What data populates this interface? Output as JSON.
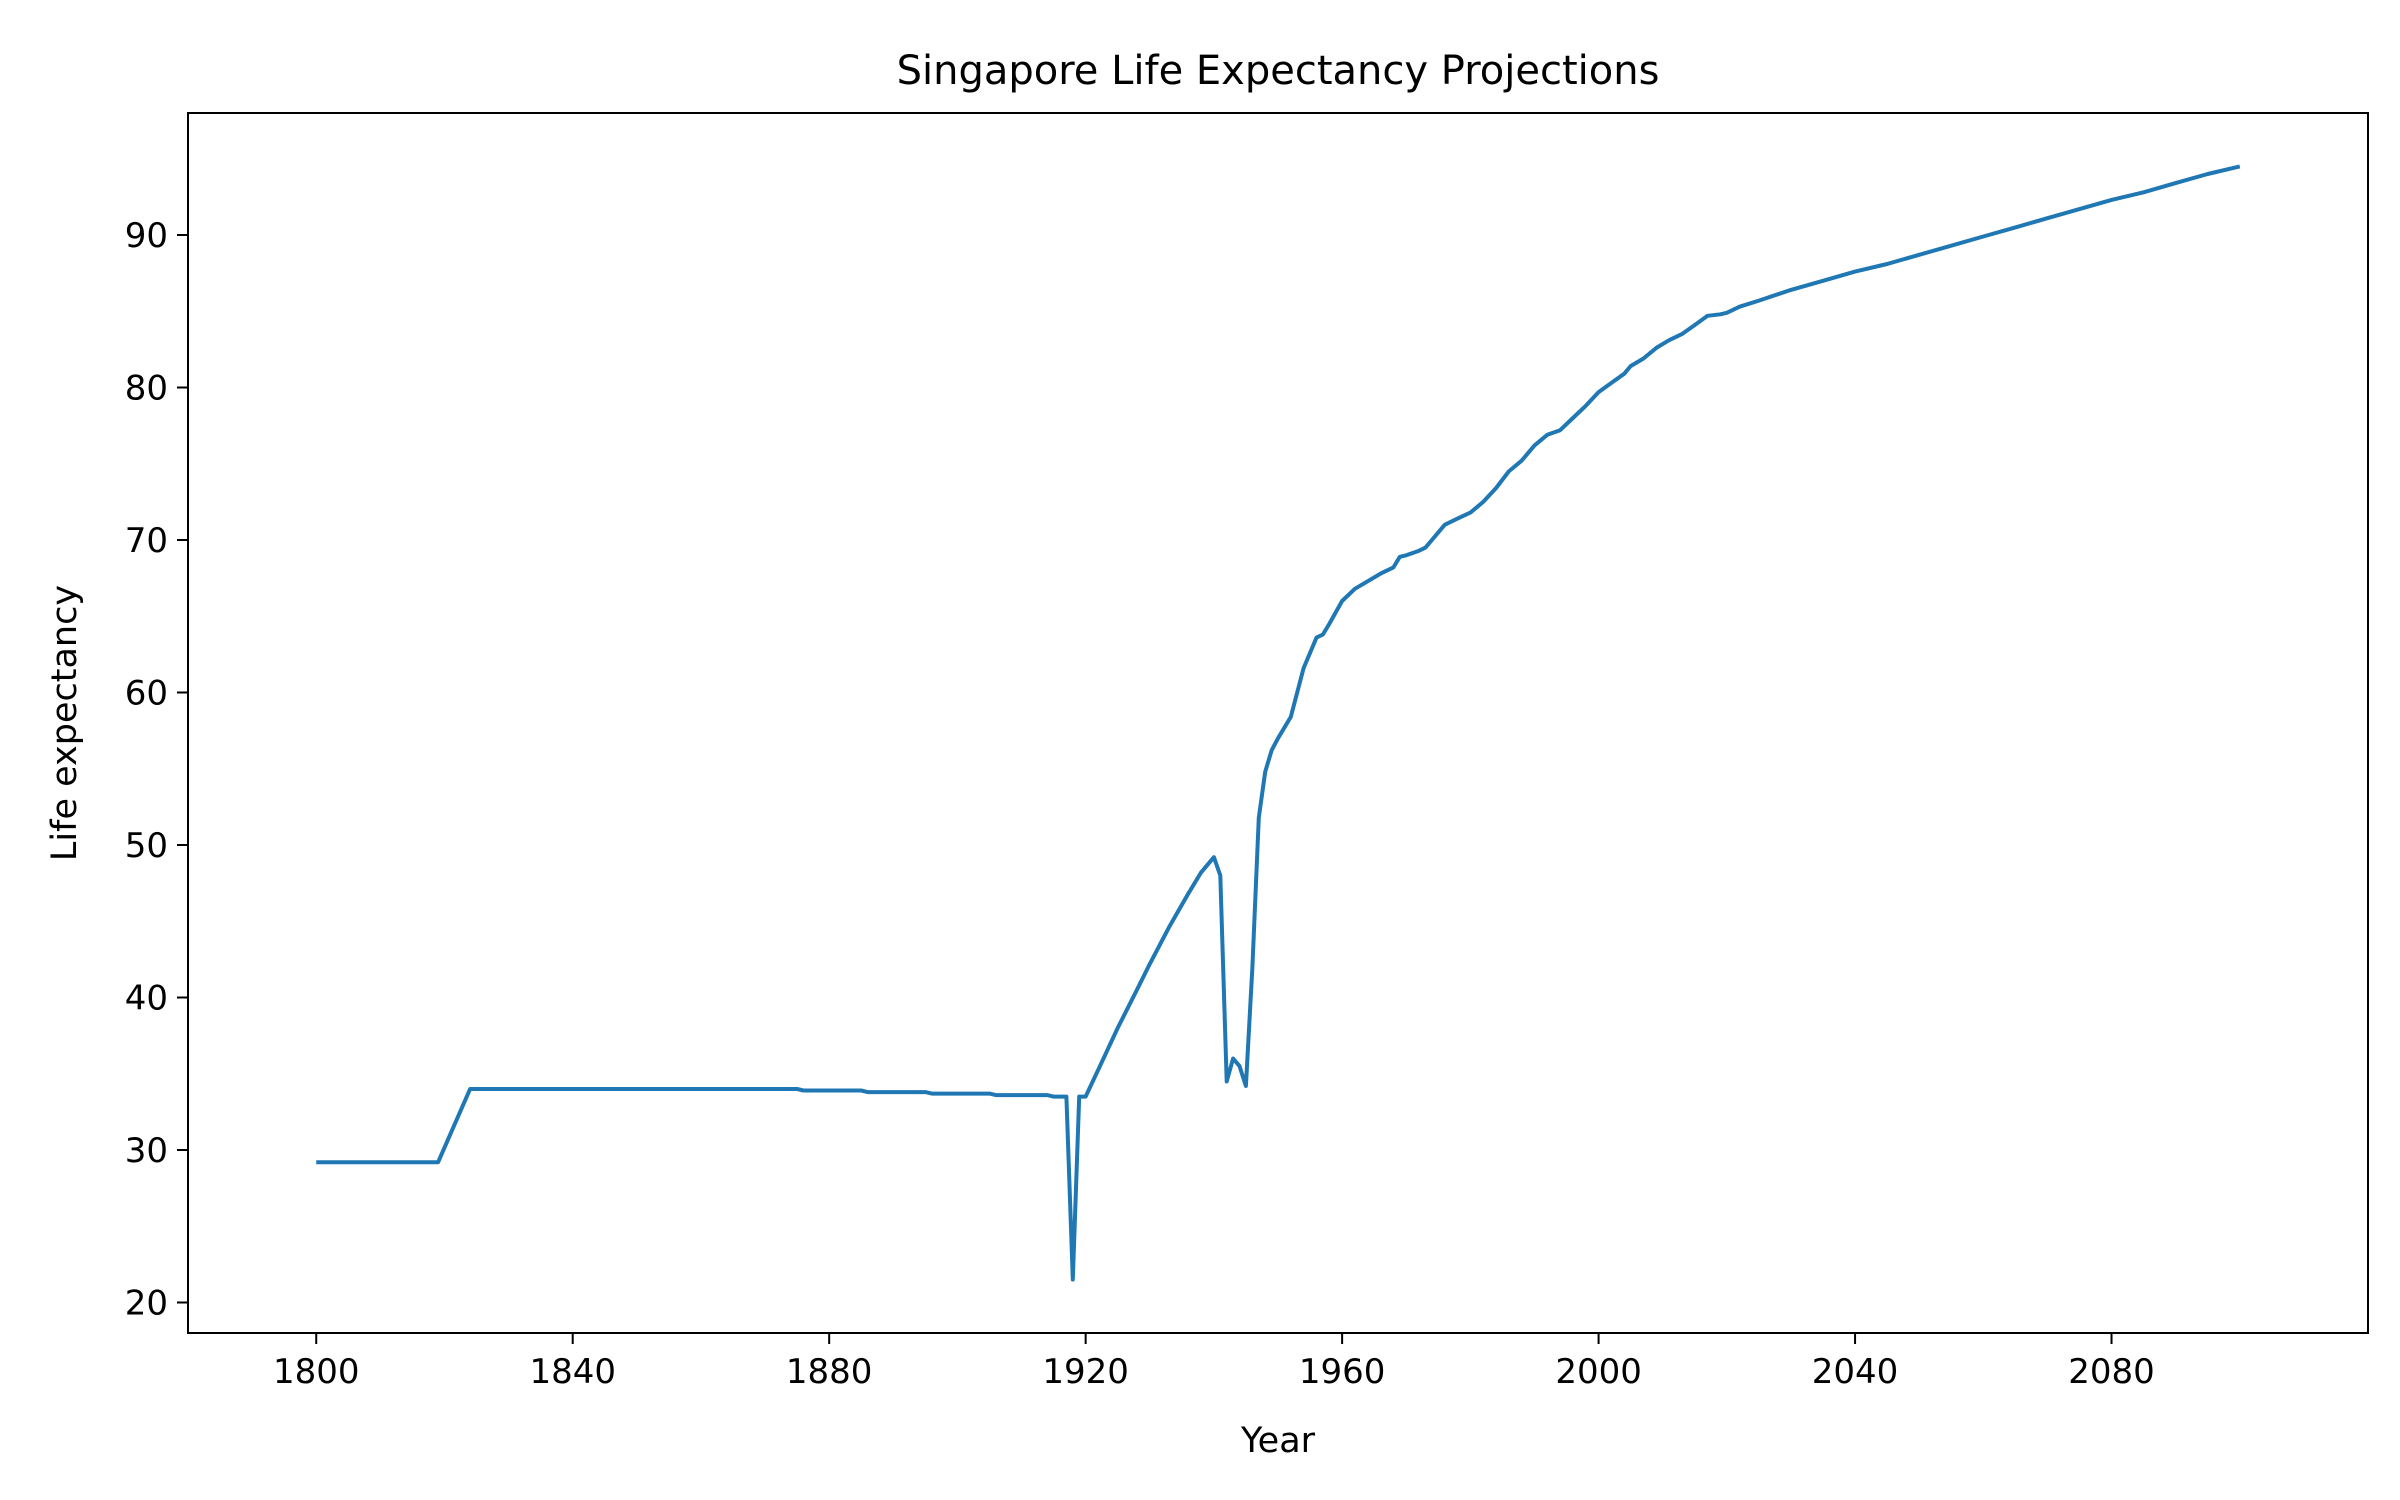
{
  "chart_data": {
    "type": "line",
    "title": "Singapore Life Expectancy Projections",
    "xlabel": "Year",
    "ylabel": "Life expectancy",
    "xlim": [
      1780,
      2120
    ],
    "ylim": [
      18,
      98
    ],
    "xticks": [
      1800,
      1840,
      1880,
      1920,
      1960,
      2000,
      2040,
      2080
    ],
    "yticks": [
      20,
      30,
      40,
      50,
      60,
      70,
      80,
      90
    ],
    "grid": false,
    "legend": "none",
    "series": [
      {
        "color": "#1f77b4",
        "x": [
          1800,
          1810,
          1819,
          1824,
          1830,
          1840,
          1850,
          1860,
          1870,
          1875,
          1876,
          1880,
          1885,
          1886,
          1890,
          1895,
          1896,
          1900,
          1905,
          1906,
          1910,
          1914,
          1915,
          1917,
          1918,
          1919,
          1920,
          1922,
          1925,
          1928,
          1930,
          1933,
          1936,
          1938,
          1940,
          1941,
          1942,
          1943,
          1944,
          1945,
          1946,
          1947,
          1948,
          1949,
          1950,
          1952,
          1954,
          1956,
          1957,
          1958,
          1960,
          1962,
          1964,
          1966,
          1968,
          1969,
          1970,
          1972,
          1973,
          1974,
          1976,
          1978,
          1980,
          1982,
          1984,
          1986,
          1988,
          1990,
          1992,
          1994,
          1996,
          1998,
          2000,
          2002,
          2004,
          2005,
          2007,
          2009,
          2011,
          2013,
          2015,
          2017,
          2019,
          2020,
          2022,
          2025,
          2030,
          2035,
          2040,
          2045,
          2050,
          2055,
          2060,
          2065,
          2070,
          2075,
          2080,
          2085,
          2090,
          2095,
          2100
        ],
        "values": [
          29.2,
          29.2,
          29.2,
          34.0,
          34.0,
          34.0,
          34.0,
          34.0,
          34.0,
          34.0,
          33.9,
          33.9,
          33.9,
          33.8,
          33.8,
          33.8,
          33.7,
          33.7,
          33.7,
          33.6,
          33.6,
          33.6,
          33.5,
          33.5,
          21.5,
          33.5,
          33.5,
          35.3,
          38.0,
          40.5,
          42.2,
          44.6,
          46.8,
          48.2,
          49.2,
          48.0,
          34.5,
          36.0,
          35.5,
          34.2,
          42.0,
          51.8,
          54.8,
          56.2,
          57.0,
          58.4,
          61.6,
          63.6,
          63.8,
          64.5,
          66.0,
          66.8,
          67.3,
          67.8,
          68.2,
          68.9,
          69.0,
          69.3,
          69.5,
          70.0,
          71.0,
          71.4,
          71.8,
          72.5,
          73.4,
          74.5,
          75.2,
          76.2,
          76.9,
          77.2,
          78.0,
          78.8,
          79.7,
          80.3,
          80.9,
          81.4,
          81.9,
          82.6,
          83.1,
          83.5,
          84.1,
          84.7,
          84.8,
          84.9,
          85.3,
          85.7,
          86.4,
          87.0,
          87.6,
          88.1,
          88.7,
          89.3,
          89.9,
          90.5,
          91.1,
          91.7,
          92.3,
          92.8,
          93.4,
          94.0,
          94.5
        ]
      }
    ]
  }
}
